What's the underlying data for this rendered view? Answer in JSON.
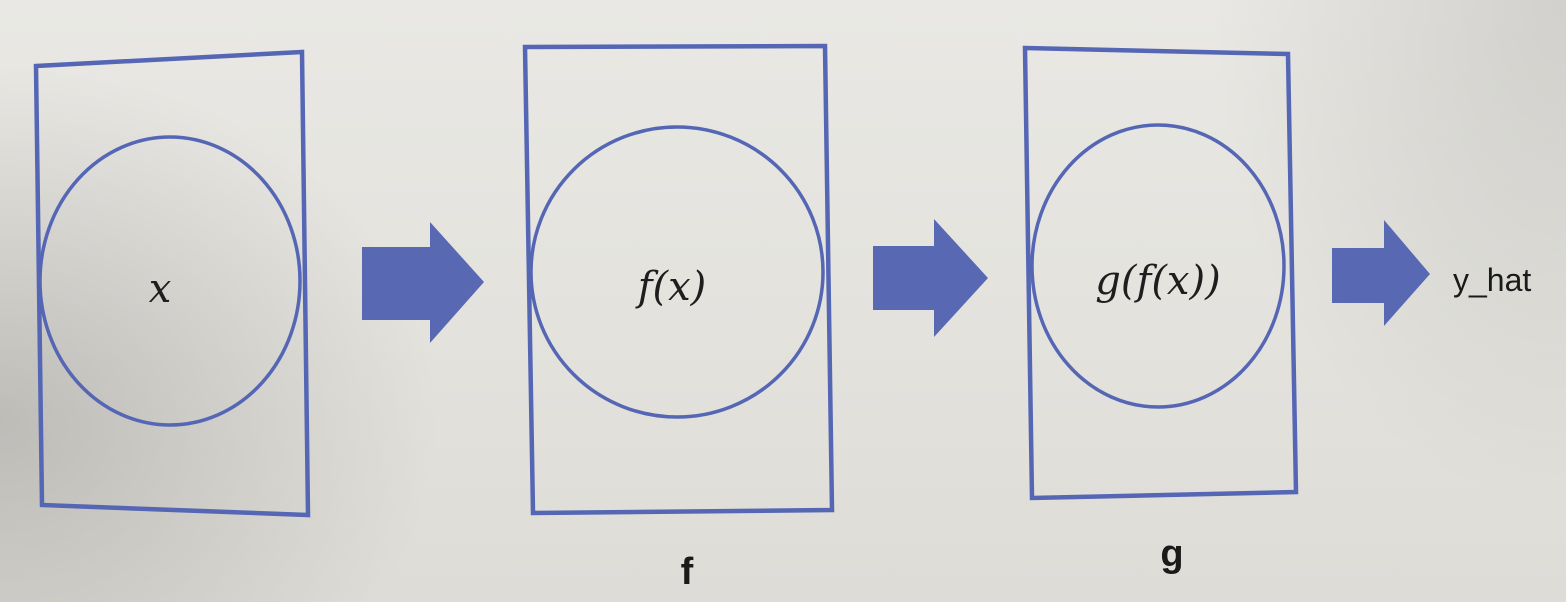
{
  "diagram": {
    "input": {
      "expression": "x"
    },
    "stage_f": {
      "expression": "f(x)",
      "label": "f"
    },
    "stage_g": {
      "expression": "g(f(x))",
      "label": "g"
    },
    "output": {
      "label": "y_hat"
    },
    "colors": {
      "box_stroke": "#5566b4",
      "arrow_fill": "#5868b2",
      "text": "#1a1a1a"
    }
  }
}
